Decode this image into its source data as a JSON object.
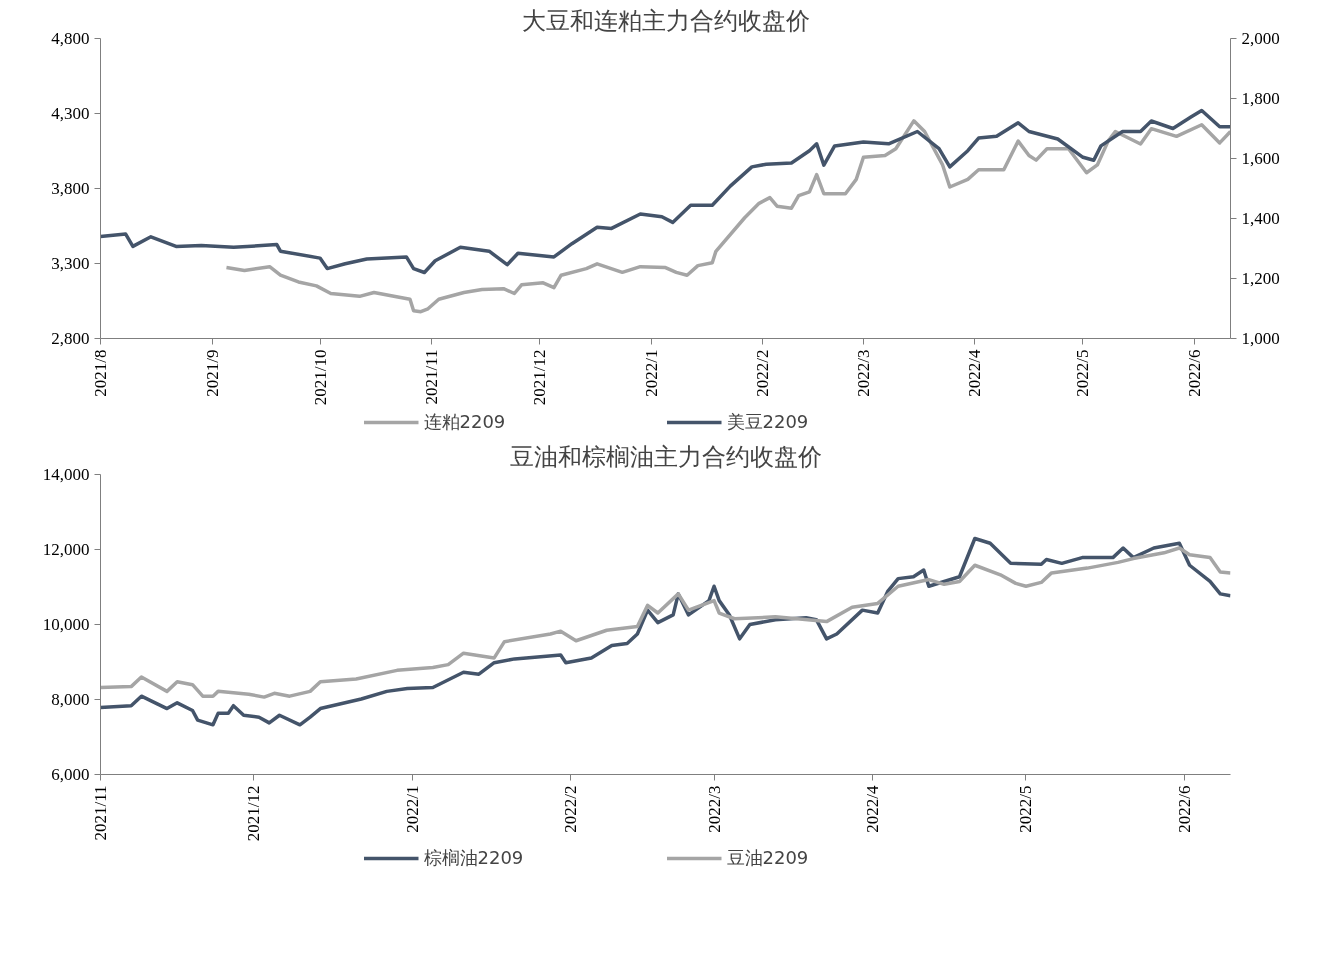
{
  "chart_data": [
    {
      "type": "line",
      "title": "大豆和连粕主力合约收盘价",
      "legend": "bottom",
      "grid": false,
      "xlim": [
        "2021-08-01",
        "2022-06-11"
      ],
      "xticks": [
        {
          "value": "2021-08-01",
          "label": "2021/8"
        },
        {
          "value": "2021-09-01",
          "label": "2021/9"
        },
        {
          "value": "2021-10-01",
          "label": "2021/10"
        },
        {
          "value": "2021-11-01",
          "label": "2021/11"
        },
        {
          "value": "2021-12-01",
          "label": "2021/12"
        },
        {
          "value": "2022-01-01",
          "label": "2022/1"
        },
        {
          "value": "2022-02-01",
          "label": "2022/2"
        },
        {
          "value": "2022-03-01",
          "label": "2022/3"
        },
        {
          "value": "2022-04-01",
          "label": "2022/4"
        },
        {
          "value": "2022-05-01",
          "label": "2022/5"
        },
        {
          "value": "2022-06-01",
          "label": "2022/6"
        }
      ],
      "ylim": [
        2800,
        4800
      ],
      "yticks": [
        {
          "value": 2800,
          "label": "2,800"
        },
        {
          "value": 3300,
          "label": "3,300"
        },
        {
          "value": 3800,
          "label": "3,800"
        },
        {
          "value": 4300,
          "label": "4,300"
        },
        {
          "value": 4800,
          "label": "4,800"
        }
      ],
      "y2lim": [
        1000,
        2000
      ],
      "y2ticks": [
        {
          "value": 1000,
          "label": "1,000"
        },
        {
          "value": 1200,
          "label": "1,200"
        },
        {
          "value": 1400,
          "label": "1,400"
        },
        {
          "value": 1600,
          "label": "1,600"
        },
        {
          "value": 1800,
          "label": "1,800"
        },
        {
          "value": 2000,
          "label": "2,000"
        }
      ],
      "series": [
        {
          "name": "连粕2209",
          "color": "#a5a5a5",
          "x": [
            "2021-09-05",
            "2021-09-10",
            "2021-09-17",
            "2021-09-20",
            "2021-09-25",
            "2021-09-30",
            "2021-10-04",
            "2021-10-12",
            "2021-10-16",
            "2021-10-23",
            "2021-10-26",
            "2021-10-27",
            "2021-10-29",
            "2021-10-31",
            "2021-11-03",
            "2021-11-10",
            "2021-11-15",
            "2021-11-21",
            "2021-11-24",
            "2021-11-26",
            "2021-12-02",
            "2021-12-05",
            "2021-12-07",
            "2021-12-14",
            "2021-12-17",
            "2021-12-24",
            "2021-12-29",
            "2022-01-05",
            "2022-01-08",
            "2022-01-11",
            "2022-01-14",
            "2022-01-18",
            "2022-01-19",
            "2022-01-27",
            "2022-01-31",
            "2022-02-03",
            "2022-02-05",
            "2022-02-09",
            "2022-02-11",
            "2022-02-14",
            "2022-02-16",
            "2022-02-18",
            "2022-02-24",
            "2022-02-27",
            "2022-03-01",
            "2022-03-07",
            "2022-03-10",
            "2022-03-15",
            "2022-03-18",
            "2022-03-23",
            "2022-03-25",
            "2022-03-30",
            "2022-04-02",
            "2022-04-09",
            "2022-04-13",
            "2022-04-16",
            "2022-04-18",
            "2022-04-21",
            "2022-04-27",
            "2022-05-02",
            "2022-05-05",
            "2022-05-08",
            "2022-05-10",
            "2022-05-17",
            "2022-05-20",
            "2022-05-27",
            "2022-06-03",
            "2022-06-08",
            "2022-06-11"
          ],
          "values": [
            3273,
            3254,
            3279,
            3222,
            3177,
            3151,
            3100,
            3081,
            3107,
            3075,
            3062,
            2985,
            2979,
            2998,
            3062,
            3107,
            3126,
            3132,
            3100,
            3158,
            3171,
            3139,
            3222,
            3266,
            3298,
            3241,
            3279,
            3273,
            3241,
            3222,
            3286,
            3305,
            3381,
            3605,
            3701,
            3739,
            3682,
            3669,
            3752,
            3778,
            3893,
            3765,
            3765,
            3861,
            4008,
            4020,
            4065,
            4251,
            4180,
            3957,
            3810,
            3861,
            3925,
            3925,
            4116,
            4020,
            3989,
            4065,
            4065,
            3905,
            3957,
            4116,
            4180,
            4097,
            4199,
            4148,
            4225,
            4104,
            4180
          ]
        },
        {
          "name": "美豆2209",
          "color": "#44546a",
          "axis": "y2",
          "x": [
            "2021-08-01",
            "2021-08-08",
            "2021-08-10",
            "2021-08-15",
            "2021-08-22",
            "2021-08-29",
            "2021-09-07",
            "2021-09-19",
            "2021-09-20",
            "2021-10-01",
            "2021-10-03",
            "2021-10-08",
            "2021-10-14",
            "2021-10-25",
            "2021-10-27",
            "2021-10-30",
            "2021-11-02",
            "2021-11-09",
            "2021-11-17",
            "2021-11-22",
            "2021-11-25",
            "2021-12-05",
            "2021-12-10",
            "2021-12-17",
            "2021-12-21",
            "2021-12-29",
            "2022-01-04",
            "2022-01-07",
            "2022-01-12",
            "2022-01-18",
            "2022-01-23",
            "2022-01-29",
            "2022-02-02",
            "2022-02-09",
            "2022-02-14",
            "2022-02-16",
            "2022-02-18",
            "2022-02-21",
            "2022-03-01",
            "2022-03-08",
            "2022-03-16",
            "2022-03-22",
            "2022-03-25",
            "2022-03-30",
            "2022-04-02",
            "2022-04-07",
            "2022-04-13",
            "2022-04-16",
            "2022-04-24",
            "2022-05-01",
            "2022-05-04",
            "2022-05-06",
            "2022-05-12",
            "2022-05-17",
            "2022-05-20",
            "2022-05-26",
            "2022-05-31",
            "2022-06-03",
            "2022-06-08",
            "2022-06-11"
          ],
          "values": [
            1340,
            1348,
            1307,
            1339,
            1307,
            1310,
            1304,
            1313,
            1291,
            1268,
            1233,
            1249,
            1265,
            1272,
            1233,
            1220,
            1259,
            1304,
            1291,
            1246,
            1284,
            1272,
            1316,
            1371,
            1367,
            1415,
            1406,
            1387,
            1444,
            1444,
            1508,
            1572,
            1581,
            1585,
            1626,
            1649,
            1578,
            1642,
            1655,
            1649,
            1690,
            1633,
            1572,
            1626,
            1668,
            1674,
            1719,
            1690,
            1665,
            1604,
            1594,
            1642,
            1690,
            1690,
            1725,
            1700,
            1738,
            1760,
            1706,
            1706
          ]
        }
      ]
    },
    {
      "type": "line",
      "title": "豆油和棕榈油主力合约收盘价",
      "legend": "bottom",
      "grid": false,
      "xlim": [
        "2021-11-01",
        "2022-06-10"
      ],
      "xticks": [
        {
          "value": "2021-11-01",
          "label": "2021/11"
        },
        {
          "value": "2021-12-01",
          "label": "2021/12"
        },
        {
          "value": "2022-01-01",
          "label": "2022/1"
        },
        {
          "value": "2022-02-01",
          "label": "2022/2"
        },
        {
          "value": "2022-03-01",
          "label": "2022/3"
        },
        {
          "value": "2022-04-01",
          "label": "2022/4"
        },
        {
          "value": "2022-05-01",
          "label": "2022/5"
        },
        {
          "value": "2022-06-01",
          "label": "2022/6"
        }
      ],
      "ylim": [
        6000,
        14000
      ],
      "yticks": [
        {
          "value": 6000,
          "label": "6,000"
        },
        {
          "value": 8000,
          "label": "8,000"
        },
        {
          "value": 10000,
          "label": "10,000"
        },
        {
          "value": 12000,
          "label": "12,000"
        },
        {
          "value": 14000,
          "label": "14,000"
        }
      ],
      "series": [
        {
          "name": "棕榈油2209",
          "color": "#44546a",
          "x": [
            "2021-11-01",
            "2021-11-07",
            "2021-11-09",
            "2021-11-14",
            "2021-11-16",
            "2021-11-19",
            "2021-11-20",
            "2021-11-23",
            "2021-11-24",
            "2021-11-26",
            "2021-11-27",
            "2021-11-29",
            "2021-12-02",
            "2021-12-04",
            "2021-12-06",
            "2021-12-10",
            "2021-12-12",
            "2021-12-14",
            "2021-12-18",
            "2021-12-22",
            "2021-12-27",
            "2021-12-31",
            "2022-01-05",
            "2022-01-11",
            "2022-01-14",
            "2022-01-17",
            "2022-01-21",
            "2022-01-30",
            "2022-01-31",
            "2022-02-05",
            "2022-02-09",
            "2022-02-12",
            "2022-02-14",
            "2022-02-16",
            "2022-02-18",
            "2022-02-21",
            "2022-02-22",
            "2022-02-24",
            "2022-02-28",
            "2022-03-01",
            "2022-03-02",
            "2022-03-04",
            "2022-03-06",
            "2022-03-08",
            "2022-03-13",
            "2022-03-19",
            "2022-03-21",
            "2022-03-23",
            "2022-03-25",
            "2022-03-30",
            "2022-04-02",
            "2022-04-04",
            "2022-04-06",
            "2022-04-09",
            "2022-04-11",
            "2022-04-12",
            "2022-04-18",
            "2022-04-21",
            "2022-04-24",
            "2022-04-28",
            "2022-05-04",
            "2022-05-05",
            "2022-05-08",
            "2022-05-12",
            "2022-05-18",
            "2022-05-20",
            "2022-05-22",
            "2022-05-26",
            "2022-05-31",
            "2022-06-02",
            "2022-06-06",
            "2022-06-08",
            "2022-06-10"
          ],
          "values": [
            7784,
            7835,
            8089,
            7758,
            7911,
            7707,
            7452,
            7325,
            7631,
            7631,
            7835,
            7580,
            7529,
            7376,
            7580,
            7325,
            7529,
            7758,
            7886,
            8013,
            8217,
            8293,
            8319,
            8726,
            8675,
            8981,
            9083,
            9185,
            8981,
            9109,
            9440,
            9491,
            9746,
            10383,
            10051,
            10255,
            10816,
            10255,
            10637,
            11020,
            10637,
            10255,
            9618,
            10000,
            10128,
            10179,
            10128,
            9618,
            9746,
            10383,
            10306,
            10892,
            11223,
            11274,
            11453,
            11020,
            11274,
            12294,
            12166,
            11631,
            11606,
            11733,
            11631,
            11784,
            11784,
            12039,
            11784,
            12039,
            12166,
            11580,
            11147,
            10816,
            10765
          ]
        },
        {
          "name": "豆油2209",
          "color": "#a5a5a5",
          "x": [
            "2021-11-01",
            "2021-11-07",
            "2021-11-09",
            "2021-11-14",
            "2021-11-16",
            "2021-11-19",
            "2021-11-21",
            "2021-11-23",
            "2021-11-24",
            "2021-11-30",
            "2021-12-03",
            "2021-12-05",
            "2021-12-08",
            "2021-12-12",
            "2021-12-14",
            "2021-12-21",
            "2021-12-29",
            "2022-01-05",
            "2022-01-08",
            "2022-01-11",
            "2022-01-17",
            "2022-01-19",
            "2022-01-28",
            "2022-01-30",
            "2022-02-02",
            "2022-02-08",
            "2022-02-14",
            "2022-02-16",
            "2022-02-18",
            "2022-02-22",
            "2022-02-24",
            "2022-03-01",
            "2022-03-02",
            "2022-03-05",
            "2022-03-13",
            "2022-03-23",
            "2022-03-28",
            "2022-04-02",
            "2022-04-06",
            "2022-04-12",
            "2022-04-15",
            "2022-04-18",
            "2022-04-21",
            "2022-04-26",
            "2022-04-29",
            "2022-05-01",
            "2022-05-04",
            "2022-05-06",
            "2022-05-13",
            "2022-05-19",
            "2022-05-22",
            "2022-05-28",
            "2022-05-31",
            "2022-06-02",
            "2022-06-06",
            "2022-06-08",
            "2022-06-10"
          ],
          "values": [
            8319,
            8344,
            8599,
            8217,
            8472,
            8395,
            8089,
            8089,
            8217,
            8140,
            8064,
            8166,
            8089,
            8217,
            8472,
            8548,
            8777,
            8854,
            8930,
            9236,
            9109,
            9542,
            9746,
            9822,
            9567,
            9847,
            9949,
            10510,
            10306,
            10816,
            10383,
            10637,
            10306,
            10153,
            10204,
            10077,
            10459,
            10561,
            11020,
            11198,
            11071,
            11147,
            11580,
            11325,
            11096,
            11020,
            11122,
            11376,
            11504,
            11657,
            11758,
            11911,
            12039,
            11860,
            11784,
            11402,
            11376
          ]
        }
      ]
    }
  ]
}
